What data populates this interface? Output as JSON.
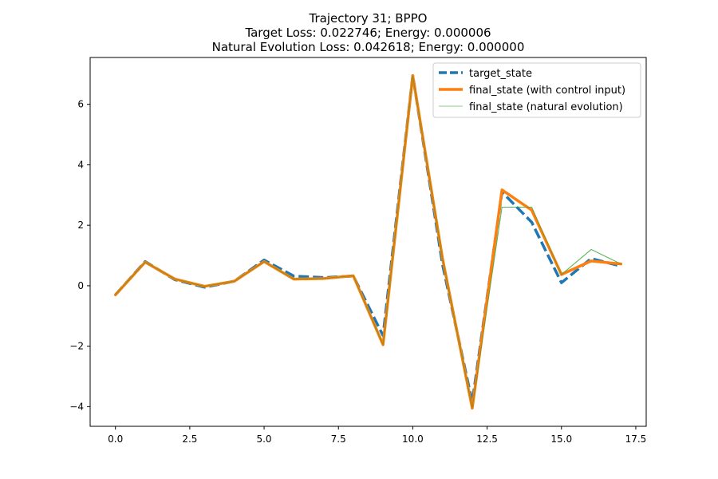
{
  "chart_data": {
    "type": "line",
    "title": "Trajectory 31; BPPO\nTarget Loss: 0.022746; Energy: 0.000006\nNatural Evolution Loss: 0.042618; Energy: 0.000000",
    "xlabel": "",
    "ylabel": "",
    "xlim": [
      -0.85,
      17.85
    ],
    "ylim": [
      -4.65,
      7.55
    ],
    "xticks": [
      0.0,
      2.5,
      5.0,
      7.5,
      10.0,
      12.5,
      15.0,
      17.5
    ],
    "xtick_labels": [
      "0.0",
      "2.5",
      "5.0",
      "7.5",
      "10.0",
      "12.5",
      "15.0",
      "17.5"
    ],
    "yticks": [
      -4,
      -2,
      0,
      2,
      4,
      6
    ],
    "ytick_labels": [
      "−4",
      "−2",
      "0",
      "2",
      "4",
      "6"
    ],
    "grid": false,
    "legend_position": "top-right",
    "x": [
      0,
      1,
      2,
      3,
      4,
      5,
      6,
      7,
      8,
      9,
      10,
      11,
      12,
      13,
      14,
      15,
      16,
      17
    ],
    "series": [
      {
        "name": "target_state",
        "color": "#1f77b4",
        "style": "dashed",
        "values": [
          -0.3,
          0.8,
          0.2,
          -0.05,
          0.15,
          0.85,
          0.32,
          0.27,
          0.32,
          -1.65,
          6.95,
          0.7,
          -3.85,
          3.1,
          2.1,
          0.1,
          0.9,
          0.65
        ]
      },
      {
        "name": "final_state (with control input)",
        "color": "#ff7f0e",
        "style": "solid-thick",
        "values": [
          -0.3,
          0.78,
          0.22,
          -0.02,
          0.15,
          0.8,
          0.22,
          0.24,
          0.33,
          -1.95,
          6.95,
          0.9,
          -4.05,
          3.17,
          2.5,
          0.37,
          0.82,
          0.72
        ]
      },
      {
        "name": "final_state (natural evolution)",
        "color": "#2ca02c",
        "style": "solid-thin",
        "values": [
          -0.3,
          0.78,
          0.22,
          -0.02,
          0.15,
          0.8,
          0.22,
          0.24,
          0.33,
          -1.95,
          6.95,
          0.9,
          -4.05,
          2.6,
          2.6,
          0.37,
          1.2,
          0.72
        ]
      }
    ]
  }
}
